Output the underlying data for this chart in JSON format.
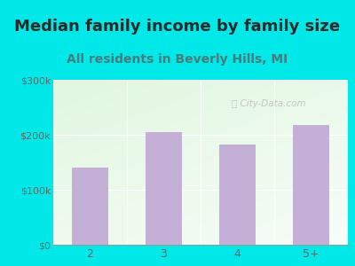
{
  "title": "Median family income by family size",
  "subtitle": "All residents in Beverly Hills, MI",
  "categories": [
    "2",
    "3",
    "4",
    "5+"
  ],
  "values": [
    140000,
    205000,
    182000,
    218000
  ],
  "bar_color": "#c4afd6",
  "title_fontsize": 13,
  "subtitle_fontsize": 10,
  "title_color": "#2a2a2a",
  "subtitle_color": "#4a7a7a",
  "tick_color": "#666666",
  "background_outer": "#00e8e8",
  "ylim": [
    0,
    300000
  ],
  "yticks": [
    0,
    100000,
    200000,
    300000
  ],
  "ytick_labels": [
    "$0",
    "$100k",
    "$200k",
    "$300k"
  ],
  "watermark": "ⓘ City-Data.com"
}
